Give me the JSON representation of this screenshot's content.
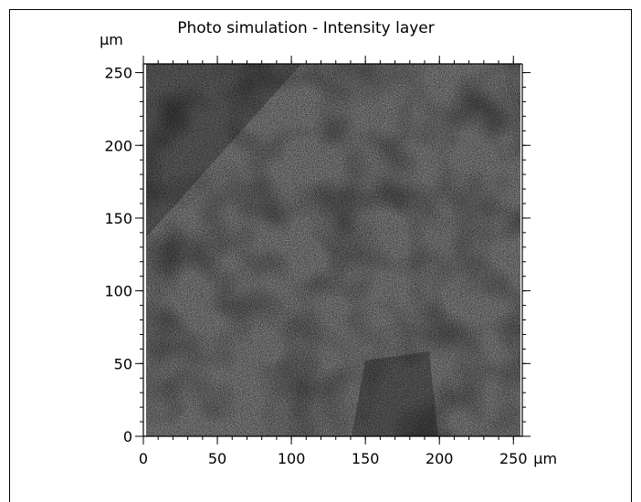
{
  "chart_data": {
    "type": "heatmap",
    "title": "Photo simulation - Intensity layer",
    "x_unit": "µm",
    "y_unit": "µm",
    "xlim": [
      0,
      256
    ],
    "ylim": [
      0,
      256
    ],
    "x_ticks": [
      0,
      50,
      100,
      150,
      200,
      250
    ],
    "y_ticks": [
      0,
      50,
      100,
      150,
      200,
      250
    ],
    "x_tick_labels": [
      "0",
      "50",
      "100",
      "150",
      "200",
      "250"
    ],
    "y_tick_labels": [
      "0",
      "50",
      "100",
      "150",
      "200",
      "250"
    ],
    "grid": false,
    "legend": "none",
    "colormap": [
      "#000000",
      "#ffffff"
    ],
    "image_description": "grayscale shaded surface texture"
  },
  "colors": {
    "background": "#ffffff",
    "axis": "#000000",
    "surface_dark": "#1a1a1a",
    "surface_light": "#9a9a9a"
  }
}
